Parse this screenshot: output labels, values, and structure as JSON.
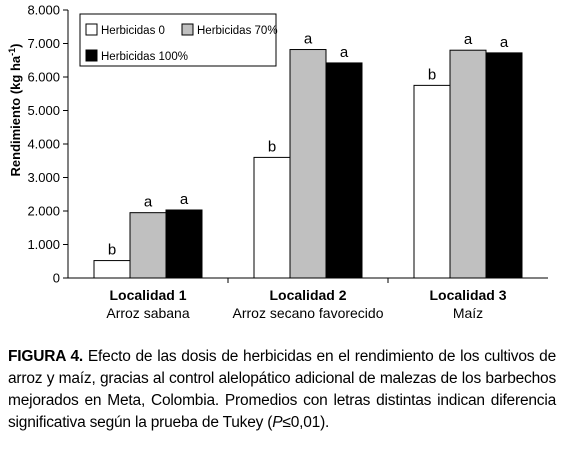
{
  "chart_data": {
    "type": "bar",
    "ylabel": "Rendimiento (kg ha",
    "ylabel_sup": "-1",
    "ylabel_close": ")",
    "ylim": [
      0,
      8000
    ],
    "yticks": [
      0,
      1000,
      2000,
      3000,
      4000,
      5000,
      6000,
      7000,
      8000
    ],
    "ytick_labels": [
      "0",
      "1.000",
      "2.000",
      "3.000",
      "4.000",
      "5.000",
      "6.000",
      "7.000",
      "8.000"
    ],
    "grid": false,
    "legend_position": "top-left",
    "categories": [
      {
        "name": "Localidad 1",
        "sub": "Arroz sabana"
      },
      {
        "name": "Localidad 2",
        "sub": "Arroz secano favorecido"
      },
      {
        "name": "Localidad 3",
        "sub": "Maíz"
      }
    ],
    "series": [
      {
        "name": "Herbicidas 0",
        "color": "#ffffff",
        "values": [
          520,
          3600,
          5750
        ],
        "labels": [
          "b",
          "b",
          "b"
        ]
      },
      {
        "name": "Herbicidas 70%",
        "color": "#c0c0c0",
        "values": [
          1950,
          6820,
          6800
        ],
        "labels": [
          "a",
          "a",
          "a"
        ]
      },
      {
        "name": "Herbicidas 100%",
        "color": "#000000",
        "values": [
          2030,
          6420,
          6720
        ],
        "labels": [
          "a",
          "a",
          "a"
        ]
      }
    ]
  },
  "caption": {
    "figure_label": "FIGURA 4.",
    "text": "Efecto de las dosis de herbicidas en el rendimiento de los cultivos de arroz y maíz, gracias al control alelopático adicional de malezas de los barbechos mejorados en Meta, Colombia. Promedios con letras distintas indican diferencia significativa según la prueba de Tukey (",
    "p_symbol": "P",
    "p_rest": "≤0,01)."
  }
}
